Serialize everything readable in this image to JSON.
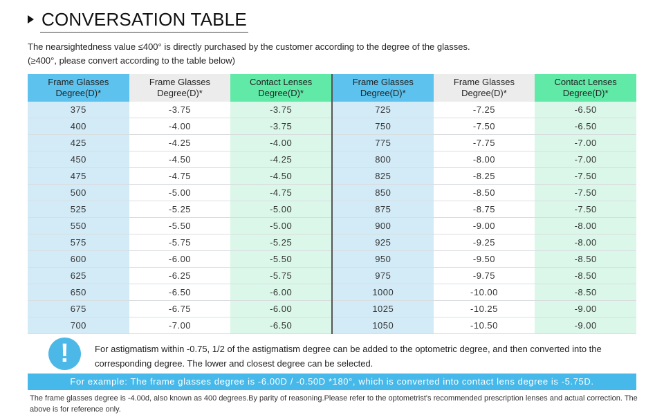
{
  "title": "CONVERSATION TABLE",
  "intro": {
    "line1": "The nearsightedness value ≤400° is directly purchased by the customer according to the degree of the glasses.",
    "line2": "(≥400°, please convert according to the table below)"
  },
  "table": {
    "headers": [
      {
        "line1": "Frame Glasses",
        "line2": "Degree(D)*"
      },
      {
        "line1": "Frame Glasses",
        "line2": "Degree(D)*"
      },
      {
        "line1": "Contact Lenses",
        "line2": "Degree(D)*"
      },
      {
        "line1": "Frame Glasses",
        "line2": "Degree(D)*"
      },
      {
        "line1": "Frame Glasses",
        "line2": "Degree(D)*"
      },
      {
        "line1": "Contact Lenses",
        "line2": "Degree(D)*"
      }
    ],
    "rows": [
      [
        "375",
        "-3.75",
        "-3.75",
        "725",
        "-7.25",
        "-6.50"
      ],
      [
        "400",
        "-4.00",
        "-3.75",
        "750",
        "-7.50",
        "-6.50"
      ],
      [
        "425",
        "-4.25",
        "-4.00",
        "775",
        "-7.75",
        "-7.00"
      ],
      [
        "450",
        "-4.50",
        "-4.25",
        "800",
        "-8.00",
        "-7.00"
      ],
      [
        "475",
        "-4.75",
        "-4.50",
        "825",
        "-8.25",
        "-7.50"
      ],
      [
        "500",
        "-5.00",
        "-4.75",
        "850",
        "-8.50",
        "-7.50"
      ],
      [
        "525",
        "-5.25",
        "-5.00",
        "875",
        "-8.75",
        "-7.50"
      ],
      [
        "550",
        "-5.50",
        "-5.00",
        "900",
        "-9.00",
        "-8.00"
      ],
      [
        "575",
        "-5.75",
        "-5.25",
        "925",
        "-9.25",
        "-8.00"
      ],
      [
        "600",
        "-6.00",
        "-5.50",
        "950",
        "-9.50",
        "-8.50"
      ],
      [
        "625",
        "-6.25",
        "-5.75",
        "975",
        "-9.75",
        "-8.50"
      ],
      [
        "650",
        "-6.50",
        "-6.00",
        "1000",
        "-10.00",
        "-8.50"
      ],
      [
        "675",
        "-6.75",
        "-6.00",
        "1025",
        "-10.25",
        "-9.00"
      ],
      [
        "700",
        "-7.00",
        "-6.50",
        "1050",
        "-10.50",
        "-9.00"
      ]
    ]
  },
  "note": {
    "icon_glyph": "!",
    "icon_name": "exclamation-icon",
    "text": "For astigmatism within -0.75, 1/2 of the astigmatism degree can be added to the optometric degree, and then converted into the corresponding degree. The lower and closest degree can be selected."
  },
  "example": "For example: The frame glasses degree is -6.00D / -0.50D *180°, which is converted into contact lens degree is -5.75D.",
  "footnote": "The frame glasses degree is -4.00d, also known as 400 degrees.By parity of reasoning.Please refer to the optometrist's recommended prescription lenses and actual correction. The above is for reference only.",
  "colors": {
    "header_blue": "#5ec2ee",
    "header_gray": "#ececec",
    "header_green": "#61e9a7",
    "cell_blue": "#d3ebf7",
    "cell_green": "#dbf7e9",
    "example_bar": "#46b9ea"
  }
}
